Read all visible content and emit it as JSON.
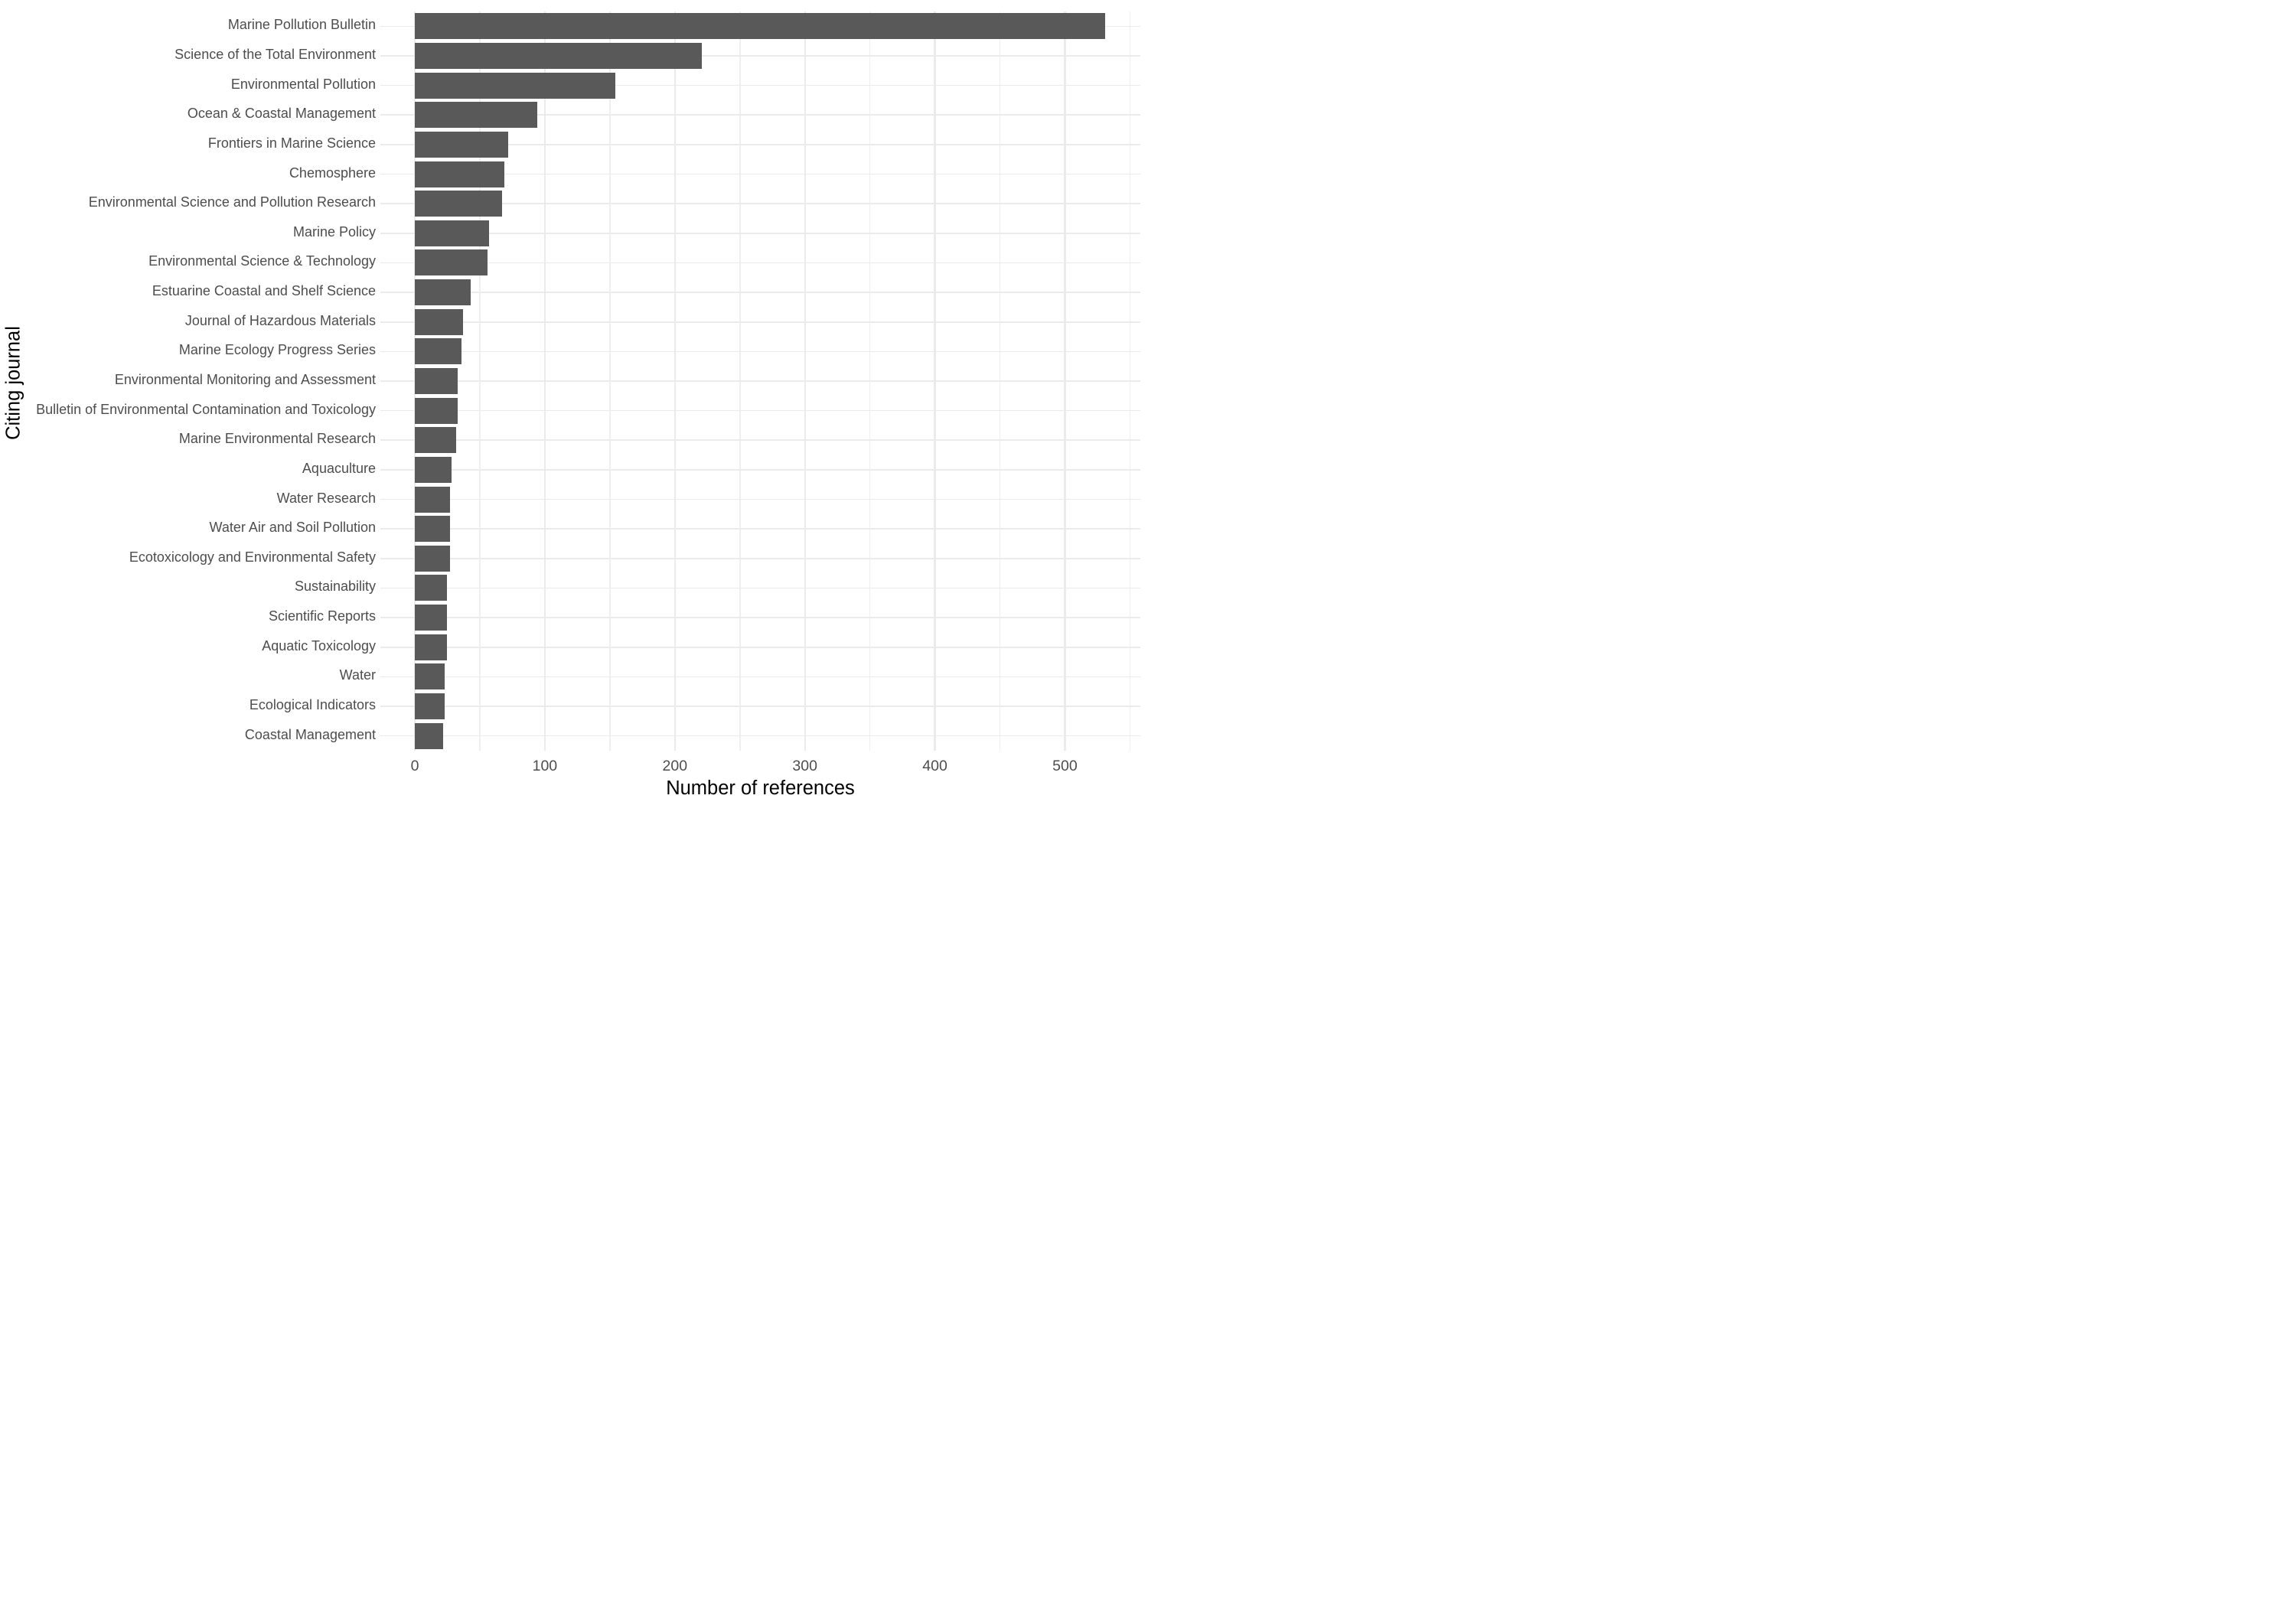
{
  "chart_data": {
    "type": "bar",
    "orientation": "horizontal",
    "title": "",
    "xlabel": "Number of references",
    "ylabel": "Citing journal",
    "categories": [
      "Marine Pollution Bulletin",
      "Science of the Total Environment",
      "Environmental Pollution",
      "Ocean & Coastal Management",
      "Frontiers in Marine Science",
      "Chemosphere",
      "Environmental Science and Pollution Research",
      "Marine Policy",
      "Environmental Science & Technology",
      "Estuarine Coastal and Shelf Science",
      "Journal of Hazardous Materials",
      "Marine Ecology Progress Series",
      "Environmental Monitoring and Assessment",
      "Bulletin of Environmental Contamination and Toxicology",
      "Marine Environmental Research",
      "Aquaculture",
      "Water Research",
      "Water Air and Soil Pollution",
      "Ecotoxicology and Environmental Safety",
      "Sustainability",
      "Scientific Reports",
      "Aquatic Toxicology",
      "Water",
      "Ecological Indicators",
      "Coastal Management"
    ],
    "values": [
      531,
      221,
      154,
      94,
      72,
      69,
      67,
      57,
      56,
      43,
      37,
      36,
      33,
      33,
      32,
      28,
      27,
      27,
      27,
      25,
      25,
      25,
      23,
      23,
      22
    ],
    "xlim": [
      0,
      558
    ],
    "x_ticks": [
      0,
      100,
      200,
      300,
      400,
      500
    ],
    "x_minor_ticks": [
      50,
      150,
      250,
      350,
      450,
      550
    ],
    "grid": "vertical major+minor, horizontal per-category",
    "legend": "none",
    "bar_color": "#595959",
    "grid_major_color": "#EBEBEB",
    "grid_minor_color": "#EFEFEF",
    "axis_text_color": "#4D4D4D",
    "axis_title_color": "#000000",
    "background": "#FFFFFF"
  }
}
